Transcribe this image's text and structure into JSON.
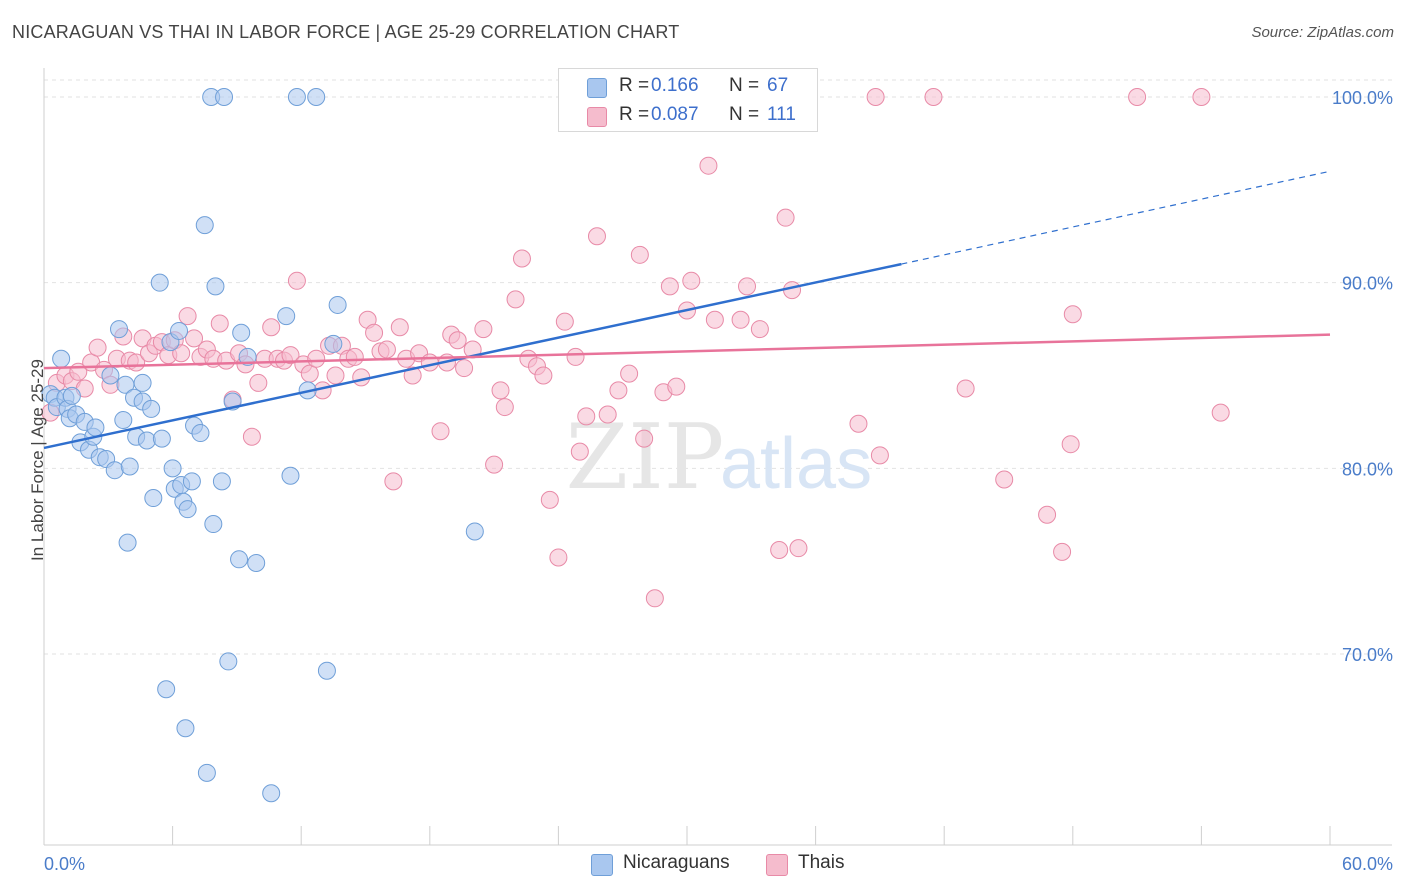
{
  "title": "NICARAGUAN VS THAI IN LABOR FORCE | AGE 25-29 CORRELATION CHART",
  "source": "Source: ZipAtlas.com",
  "watermark": {
    "part1": "ZIP",
    "part2": "atlas"
  },
  "colors": {
    "blue_fill": "#a9c7ef",
    "blue_stroke": "#6f9fd8",
    "blue_line": "#2f6fce",
    "pink_fill": "#f5bccd",
    "pink_stroke": "#e88aa7",
    "pink_line": "#e8739a",
    "tick_text": "#4a7cc9",
    "grid": "#e2e2e2"
  },
  "legend_top": [
    {
      "series": "blue",
      "r_label": "R =",
      "r_value": "0.166",
      "n_label": "N =",
      "n_value": "67"
    },
    {
      "series": "pink",
      "r_label": "R =",
      "r_value": "0.087",
      "n_label": "N =",
      "n_value": "111"
    }
  ],
  "legend_bottom": [
    {
      "series": "blue",
      "label": "Nicaraguans"
    },
    {
      "series": "pink",
      "label": "Thais"
    }
  ],
  "chart_data": {
    "type": "scatter",
    "title": "NICARAGUAN VS THAI IN LABOR FORCE | AGE 25-29 CORRELATION CHART",
    "xlabel": "",
    "ylabel": "In Labor Force | Age 25-29",
    "xlim": [
      0,
      60
    ],
    "ylim": [
      60,
      100
    ],
    "x_tick_labels": [
      {
        "value": 0,
        "label": "0.0%"
      },
      {
        "value": 60,
        "label": "60.0%"
      }
    ],
    "y_tick_labels": [
      {
        "value": 100,
        "label": "100.0%"
      },
      {
        "value": 90,
        "label": "90.0%"
      },
      {
        "value": 80,
        "label": "80.0%"
      },
      {
        "value": 70,
        "label": "70.0%"
      }
    ],
    "grid": true,
    "legend_position": "top-center",
    "series": [
      {
        "name": "Nicaraguans",
        "color": "#a9c7ef",
        "R": 0.166,
        "N": 67,
        "trend": {
          "x0": 0,
          "y0": 81.1,
          "x1": 40,
          "y1": 91.0,
          "dashed_to_x": 60,
          "dashed_to_y": 96
        },
        "points": [
          [
            0.3,
            84.0
          ],
          [
            0.5,
            83.8
          ],
          [
            0.6,
            83.3
          ],
          [
            0.8,
            85.9
          ],
          [
            1.0,
            83.8
          ],
          [
            1.1,
            83.2
          ],
          [
            1.2,
            82.7
          ],
          [
            1.3,
            83.9
          ],
          [
            1.5,
            82.9
          ],
          [
            1.7,
            81.4
          ],
          [
            1.9,
            82.5
          ],
          [
            2.1,
            81.0
          ],
          [
            2.3,
            81.7
          ],
          [
            2.4,
            82.2
          ],
          [
            2.6,
            80.6
          ],
          [
            2.9,
            80.5
          ],
          [
            3.1,
            85.0
          ],
          [
            3.3,
            79.9
          ],
          [
            3.5,
            87.5
          ],
          [
            3.7,
            82.6
          ],
          [
            3.8,
            84.5
          ],
          [
            3.9,
            76.0
          ],
          [
            4.0,
            80.1
          ],
          [
            4.2,
            83.8
          ],
          [
            4.3,
            81.7
          ],
          [
            4.6,
            83.6
          ],
          [
            4.6,
            84.6
          ],
          [
            4.8,
            81.5
          ],
          [
            5.0,
            83.2
          ],
          [
            5.1,
            78.4
          ],
          [
            5.4,
            90.0
          ],
          [
            5.5,
            81.6
          ],
          [
            5.7,
            68.1
          ],
          [
            5.9,
            86.8
          ],
          [
            6.0,
            80.0
          ],
          [
            6.1,
            78.9
          ],
          [
            6.3,
            87.4
          ],
          [
            6.4,
            79.1
          ],
          [
            6.5,
            78.2
          ],
          [
            6.6,
            66.0
          ],
          [
            6.7,
            77.8
          ],
          [
            6.9,
            79.3
          ],
          [
            7.0,
            82.3
          ],
          [
            7.3,
            81.9
          ],
          [
            7.5,
            93.1
          ],
          [
            7.6,
            63.6
          ],
          [
            7.8,
            100.0
          ],
          [
            7.9,
            77.0
          ],
          [
            8.0,
            89.8
          ],
          [
            8.3,
            79.3
          ],
          [
            8.4,
            100.0
          ],
          [
            8.6,
            69.6
          ],
          [
            8.8,
            83.6
          ],
          [
            9.1,
            75.1
          ],
          [
            9.2,
            87.3
          ],
          [
            9.5,
            86.0
          ],
          [
            9.9,
            74.9
          ],
          [
            10.6,
            62.5
          ],
          [
            11.3,
            88.2
          ],
          [
            11.5,
            79.6
          ],
          [
            11.8,
            100.0
          ],
          [
            12.3,
            84.2
          ],
          [
            12.7,
            100.0
          ],
          [
            13.2,
            69.1
          ],
          [
            13.5,
            86.7
          ],
          [
            13.7,
            88.8
          ],
          [
            20.1,
            76.6
          ]
        ]
      },
      {
        "name": "Thais",
        "color": "#f5bccd",
        "R": 0.087,
        "N": 111,
        "trend": {
          "x0": 0,
          "y0": 85.4,
          "x1": 60,
          "y1": 87.2
        },
        "points": [
          [
            0.3,
            83.0
          ],
          [
            0.6,
            84.6
          ],
          [
            1.0,
            85.0
          ],
          [
            1.3,
            84.7
          ],
          [
            1.6,
            85.2
          ],
          [
            1.9,
            84.3
          ],
          [
            2.2,
            85.7
          ],
          [
            2.5,
            86.5
          ],
          [
            2.8,
            85.3
          ],
          [
            3.1,
            84.5
          ],
          [
            3.4,
            85.9
          ],
          [
            3.7,
            87.1
          ],
          [
            4.0,
            85.8
          ],
          [
            4.3,
            85.7
          ],
          [
            4.6,
            87.0
          ],
          [
            4.9,
            86.2
          ],
          [
            5.2,
            86.6
          ],
          [
            5.5,
            86.8
          ],
          [
            5.8,
            86.1
          ],
          [
            6.1,
            86.9
          ],
          [
            6.4,
            86.2
          ],
          [
            6.7,
            88.2
          ],
          [
            7.0,
            87.0
          ],
          [
            7.3,
            86.0
          ],
          [
            7.6,
            86.4
          ],
          [
            7.9,
            85.9
          ],
          [
            8.2,
            87.8
          ],
          [
            8.5,
            85.8
          ],
          [
            8.8,
            83.7
          ],
          [
            9.1,
            86.2
          ],
          [
            9.4,
            85.6
          ],
          [
            9.7,
            81.7
          ],
          [
            10.0,
            84.6
          ],
          [
            10.3,
            85.9
          ],
          [
            10.6,
            87.6
          ],
          [
            10.9,
            85.9
          ],
          [
            11.2,
            85.8
          ],
          [
            11.5,
            86.1
          ],
          [
            11.8,
            90.1
          ],
          [
            12.1,
            85.6
          ],
          [
            12.4,
            85.1
          ],
          [
            12.7,
            85.9
          ],
          [
            13.0,
            84.2
          ],
          [
            13.3,
            86.6
          ],
          [
            13.6,
            85.0
          ],
          [
            13.9,
            86.6
          ],
          [
            14.2,
            85.9
          ],
          [
            14.5,
            86.0
          ],
          [
            14.8,
            84.9
          ],
          [
            15.1,
            88.0
          ],
          [
            15.4,
            87.3
          ],
          [
            15.7,
            86.3
          ],
          [
            16.0,
            86.4
          ],
          [
            16.3,
            79.3
          ],
          [
            16.6,
            87.6
          ],
          [
            16.9,
            85.9
          ],
          [
            17.2,
            85.0
          ],
          [
            17.5,
            86.2
          ],
          [
            18.0,
            85.7
          ],
          [
            18.5,
            82.0
          ],
          [
            18.8,
            85.7
          ],
          [
            19.0,
            87.2
          ],
          [
            19.3,
            86.9
          ],
          [
            19.6,
            85.4
          ],
          [
            20.0,
            86.4
          ],
          [
            20.5,
            87.5
          ],
          [
            21.0,
            80.2
          ],
          [
            21.3,
            84.2
          ],
          [
            21.5,
            83.3
          ],
          [
            22.0,
            89.1
          ],
          [
            22.3,
            91.3
          ],
          [
            22.6,
            85.9
          ],
          [
            23.0,
            85.5
          ],
          [
            23.3,
            85.0
          ],
          [
            23.6,
            78.3
          ],
          [
            24.0,
            75.2
          ],
          [
            24.3,
            87.9
          ],
          [
            24.8,
            86.0
          ],
          [
            25.0,
            80.9
          ],
          [
            25.3,
            82.8
          ],
          [
            25.8,
            92.5
          ],
          [
            26.3,
            82.9
          ],
          [
            26.8,
            84.2
          ],
          [
            27.3,
            85.1
          ],
          [
            27.8,
            91.5
          ],
          [
            28.0,
            81.6
          ],
          [
            28.5,
            73.0
          ],
          [
            28.9,
            84.1
          ],
          [
            29.2,
            89.8
          ],
          [
            29.5,
            84.4
          ],
          [
            30.0,
            88.5
          ],
          [
            30.2,
            90.1
          ],
          [
            31.0,
            96.3
          ],
          [
            31.3,
            88.0
          ],
          [
            32.5,
            88.0
          ],
          [
            32.8,
            89.8
          ],
          [
            33.4,
            87.5
          ],
          [
            34.3,
            75.6
          ],
          [
            34.6,
            93.5
          ],
          [
            34.9,
            89.6
          ],
          [
            35.2,
            75.7
          ],
          [
            38.0,
            82.4
          ],
          [
            38.8,
            100.0
          ],
          [
            39.0,
            80.7
          ],
          [
            41.5,
            100.0
          ],
          [
            43.0,
            84.3
          ],
          [
            44.8,
            79.4
          ],
          [
            46.8,
            77.5
          ],
          [
            47.5,
            75.5
          ],
          [
            47.9,
            81.3
          ],
          [
            48.0,
            88.3
          ],
          [
            51.0,
            100.0
          ],
          [
            54.0,
            100.0
          ],
          [
            54.9,
            83.0
          ]
        ]
      }
    ]
  }
}
